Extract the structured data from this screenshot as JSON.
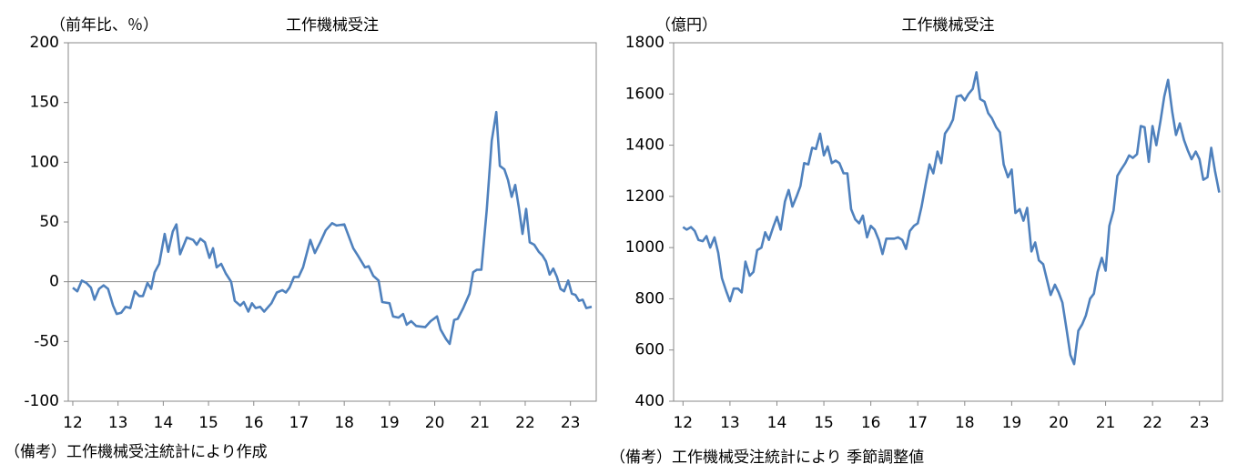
{
  "chart_data": [
    {
      "type": "line",
      "title": "工作機械受注",
      "unit_label": "（前年比、％）",
      "note": "（備考）工作機械受注統計により作成",
      "xlim": [
        11.9,
        23.57
      ],
      "xticks": [
        12,
        13,
        14,
        15,
        16,
        17,
        18,
        19,
        20,
        21,
        22,
        23
      ],
      "ylim": [
        -100,
        200
      ],
      "yticks": [
        -100,
        -50,
        0,
        50,
        100,
        150,
        200
      ],
      "zero_line": true,
      "x": [
        12.0,
        12.1,
        12.2,
        12.3,
        12.4,
        12.48,
        12.58,
        12.68,
        12.78,
        12.89,
        12.97,
        13.07,
        13.17,
        13.27,
        13.37,
        13.47,
        13.55,
        13.65,
        13.73,
        13.81,
        13.91,
        14.03,
        14.11,
        14.21,
        14.29,
        14.37,
        14.52,
        14.66,
        14.74,
        14.82,
        14.92,
        15.02,
        15.1,
        15.18,
        15.28,
        15.38,
        15.5,
        15.58,
        15.7,
        15.78,
        15.88,
        15.96,
        16.04,
        16.14,
        16.23,
        16.39,
        16.51,
        16.63,
        16.71,
        16.79,
        16.89,
        16.99,
        17.09,
        17.25,
        17.35,
        17.47,
        17.59,
        17.73,
        17.83,
        18.0,
        18.2,
        18.3,
        18.46,
        18.54,
        18.64,
        18.76,
        18.84,
        19.0,
        19.08,
        19.2,
        19.3,
        19.38,
        19.48,
        19.59,
        19.79,
        19.91,
        20.05,
        20.13,
        20.25,
        20.33,
        20.43,
        20.51,
        20.63,
        20.77,
        20.85,
        20.93,
        21.03,
        21.15,
        21.26,
        21.36,
        21.44,
        21.54,
        21.62,
        21.7,
        21.78,
        21.86,
        21.94,
        22.02,
        22.1,
        22.2,
        22.3,
        22.38,
        22.46,
        22.54,
        22.62,
        22.7,
        22.78,
        22.86,
        22.95,
        23.03,
        23.11,
        23.19,
        23.27,
        23.35,
        23.47
      ],
      "series": [
        {
          "color": "#4f81bd",
          "values": [
            -5,
            -8,
            1,
            -1,
            -5,
            -15,
            -6,
            -3,
            -6,
            -20,
            -27,
            -26,
            -21,
            -22,
            -8,
            -12,
            -12,
            -1,
            -6,
            8,
            15,
            40,
            25,
            42,
            48,
            23,
            37,
            35,
            31,
            36,
            33,
            20,
            28,
            12,
            15,
            7,
            0,
            -16,
            -20,
            -17,
            -25,
            -18,
            -22,
            -21,
            -25,
            -18,
            -9,
            -7,
            -9,
            -5,
            4,
            4,
            12,
            35,
            24,
            33,
            43,
            49,
            47,
            48,
            28,
            22,
            12,
            13,
            5,
            1,
            -17,
            -18,
            -29,
            -30,
            -27,
            -36,
            -33,
            -37,
            -38,
            -33,
            -29,
            -40,
            -48,
            -52,
            -32,
            -31,
            -22,
            -10,
            8,
            10,
            10,
            60,
            118,
            142,
            97,
            94,
            85,
            71,
            81,
            62,
            40,
            61,
            33,
            31,
            25,
            22,
            17,
            6,
            11,
            4,
            -6,
            -8,
            1,
            -10,
            -11,
            -16,
            -15,
            -22,
            -21
          ]
        }
      ]
    },
    {
      "type": "line",
      "title": "工作機械受注",
      "unit_label": "（億円）",
      "note": "（備考）工作機械受注統計により 季節調整値",
      "xlim": [
        11.8,
        23.49
      ],
      "xticks": [
        12,
        13,
        14,
        15,
        16,
        17,
        18,
        19,
        20,
        21,
        22,
        23
      ],
      "ylim": [
        400,
        1800
      ],
      "yticks": [
        400,
        600,
        800,
        1000,
        1200,
        1400,
        1600,
        1800
      ],
      "zero_line": false,
      "x": [
        12.0,
        12.08,
        12.17,
        12.25,
        12.33,
        12.42,
        12.5,
        12.58,
        12.67,
        12.75,
        12.83,
        12.92,
        13.0,
        13.08,
        13.17,
        13.25,
        13.33,
        13.42,
        13.5,
        13.58,
        13.67,
        13.75,
        13.83,
        13.92,
        14.0,
        14.08,
        14.17,
        14.25,
        14.33,
        14.42,
        14.5,
        14.58,
        14.67,
        14.75,
        14.83,
        14.92,
        15.0,
        15.08,
        15.17,
        15.25,
        15.33,
        15.42,
        15.5,
        15.58,
        15.67,
        15.75,
        15.83,
        15.92,
        16.0,
        16.08,
        16.17,
        16.25,
        16.33,
        16.42,
        16.5,
        16.58,
        16.67,
        16.75,
        16.83,
        16.92,
        17.0,
        17.08,
        17.17,
        17.25,
        17.33,
        17.42,
        17.5,
        17.58,
        17.67,
        17.75,
        17.83,
        17.92,
        18.0,
        18.08,
        18.17,
        18.25,
        18.33,
        18.42,
        18.5,
        18.58,
        18.67,
        18.75,
        18.83,
        18.92,
        19.0,
        19.08,
        19.17,
        19.25,
        19.33,
        19.42,
        19.5,
        19.58,
        19.67,
        19.75,
        19.83,
        19.92,
        20.0,
        20.08,
        20.17,
        20.25,
        20.33,
        20.42,
        20.5,
        20.58,
        20.67,
        20.75,
        20.83,
        20.92,
        21.0,
        21.08,
        21.17,
        21.25,
        21.33,
        21.42,
        21.5,
        21.58,
        21.67,
        21.75,
        21.83,
        21.92,
        22.0,
        22.08,
        22.17,
        22.25,
        22.33,
        22.42,
        22.5,
        22.58,
        22.67,
        22.75,
        22.83,
        22.92,
        23.0,
        23.08,
        23.17,
        23.25,
        23.33,
        23.42
      ],
      "series": [
        {
          "color": "#4f81bd",
          "values": [
            1080,
            1070,
            1080,
            1065,
            1030,
            1025,
            1045,
            1000,
            1040,
            980,
            880,
            830,
            790,
            840,
            840,
            825,
            945,
            890,
            905,
            990,
            1000,
            1060,
            1030,
            1080,
            1120,
            1070,
            1180,
            1225,
            1160,
            1200,
            1240,
            1330,
            1325,
            1390,
            1385,
            1445,
            1360,
            1395,
            1330,
            1340,
            1330,
            1290,
            1290,
            1150,
            1110,
            1095,
            1125,
            1040,
            1085,
            1070,
            1030,
            975,
            1035,
            1035,
            1035,
            1040,
            1030,
            995,
            1065,
            1085,
            1095,
            1160,
            1250,
            1325,
            1290,
            1375,
            1330,
            1445,
            1470,
            1500,
            1590,
            1595,
            1575,
            1600,
            1620,
            1685,
            1580,
            1570,
            1525,
            1505,
            1470,
            1450,
            1325,
            1275,
            1305,
            1135,
            1150,
            1105,
            1155,
            985,
            1020,
            950,
            935,
            875,
            815,
            855,
            825,
            785,
            680,
            580,
            545,
            675,
            700,
            735,
            800,
            820,
            905,
            960,
            910,
            1085,
            1145,
            1280,
            1305,
            1330,
            1360,
            1350,
            1365,
            1475,
            1470,
            1335,
            1475,
            1400,
            1495,
            1590,
            1655,
            1530,
            1440,
            1485,
            1420,
            1380,
            1345,
            1375,
            1345,
            1265,
            1275,
            1390,
            1300,
            1215
          ]
        }
      ]
    }
  ]
}
